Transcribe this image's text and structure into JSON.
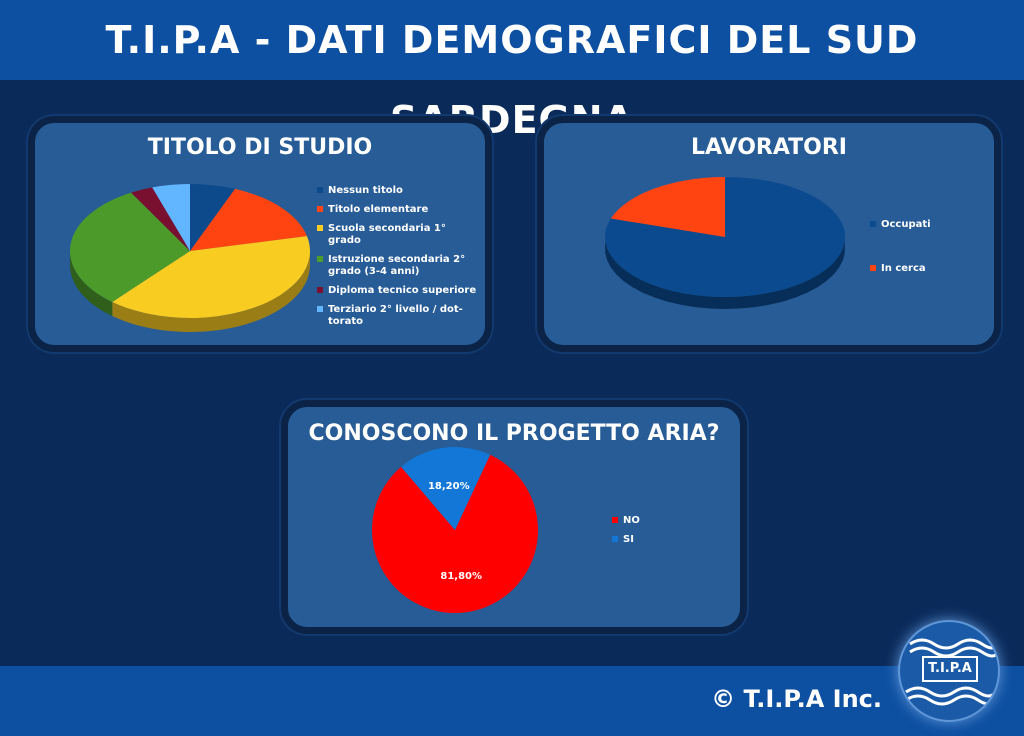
{
  "header": {
    "title": "T.I.P.A - DATI DEMOGRAFICI DEL SUD SARDEGNA"
  },
  "footer": {
    "copyright": "© T.I.P.A Inc."
  },
  "logo": {
    "text": "T.I.P.A"
  },
  "chart_data": [
    {
      "type": "pie",
      "title": "TITOLO DI STUDIO",
      "categories": [
        "Nessun titolo",
        "Titolo elementare",
        "Scuola secondaria 1° grado",
        "Istruzione secondaria 2° grado (3-4 anni)",
        "Diploma tecnico superiore",
        "Terziario 2° livello / dot-torato"
      ],
      "values": [
        6,
        15,
        39,
        30,
        3,
        5
      ],
      "colors": [
        "#0d4a8c",
        "#ff4411",
        "#f9cc22",
        "#4c9a2a",
        "#7a1030",
        "#62b6ff"
      ],
      "legend": "right",
      "style": "3d"
    },
    {
      "type": "pie",
      "title": "LAVORATORI",
      "categories": [
        "Occupati",
        "In cerca"
      ],
      "values": [
        80,
        20
      ],
      "colors": [
        "#0b4a8e",
        "#ff4411"
      ],
      "legend": "right",
      "style": "3d"
    },
    {
      "type": "pie",
      "title": "CONOSCONO IL PROGETTO ARIA?",
      "categories": [
        "NO",
        "SI"
      ],
      "values": [
        81.8,
        18.2
      ],
      "labels": [
        "81,80%",
        "18,20%"
      ],
      "colors": [
        "#ff0000",
        "#1277d6"
      ],
      "legend": "right"
    }
  ]
}
